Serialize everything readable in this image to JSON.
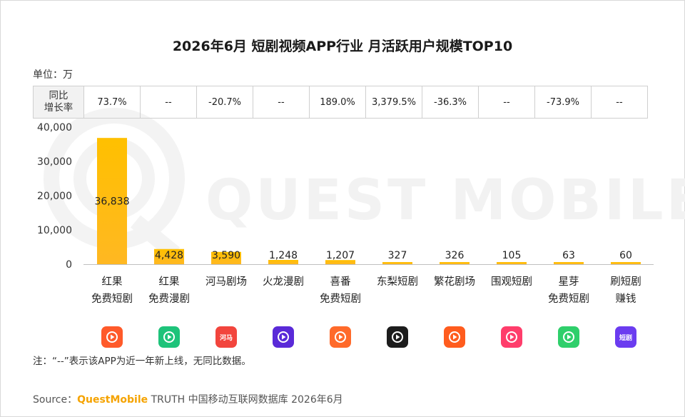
{
  "title": "2026年6月 短剧视频APP行业 月活跃用户规模TOP10",
  "unit_label": "单位：万",
  "watermark": "QUEST MOBILE",
  "yoy_header_line1": "同比",
  "yoy_header_line2": "增长率",
  "note": "注：“--”表示该APP为近一年新上线，无同比数据。",
  "source": {
    "prefix": "Source：",
    "brand": "QuestMobile",
    "suffix": " TRUTH 中国移动互联网数据库 2026年6月"
  },
  "colors": {
    "bar_top": "#ffc000",
    "bar_bottom": "#ffb822",
    "watermark": "#f2f2f2"
  },
  "apps": [
    {
      "label_lines": [
        "红果",
        "免费短剧"
      ],
      "yoy": "73.7%",
      "icon": "red-orange-play-icon",
      "icon_color": "#ff5a2a"
    },
    {
      "label_lines": [
        "红果",
        "免费漫剧"
      ],
      "yoy": "--",
      "icon": "green-play-icon",
      "icon_color": "#1ec37a"
    },
    {
      "label_lines": [
        "河马剧场"
      ],
      "yoy": "-20.7%",
      "icon": "hema-red-icon",
      "icon_color": "#f2453d",
      "icon_text": "河马"
    },
    {
      "label_lines": [
        "火龙漫剧"
      ],
      "yoy": "--",
      "icon": "huolong-purple-icon",
      "icon_color": "#5a2ad8"
    },
    {
      "label_lines": [
        "喜番",
        "免费短剧"
      ],
      "yoy": "189.0%",
      "icon": "xifan-orange-icon",
      "icon_color": "#ff6a2a"
    },
    {
      "label_lines": [
        "东梨短剧"
      ],
      "yoy": "3,379.5%",
      "icon": "dongli-black-icon",
      "icon_color": "#1c1c1c"
    },
    {
      "label_lines": [
        "繁花剧场"
      ],
      "yoy": "-36.3%",
      "icon": "fanhua-flower-icon",
      "icon_color": "#ff5c1e"
    },
    {
      "label_lines": [
        "围观短剧"
      ],
      "yoy": "--",
      "icon": "weiguan-play-icon",
      "icon_color": "#ff3d6b"
    },
    {
      "label_lines": [
        "星芽",
        "免费短剧"
      ],
      "yoy": "-73.9%",
      "icon": "xingya-green-icon",
      "icon_color": "#2fcf6b"
    },
    {
      "label_lines": [
        "刷短剧",
        "赚钱"
      ],
      "yoy": "--",
      "icon": "shuaduanju-purple-icon",
      "icon_color": "#6b3cf0",
      "icon_text": "短剧"
    }
  ],
  "chart_data": {
    "type": "bar",
    "categories": [
      "红果免费短剧",
      "红果免费漫剧",
      "河马剧场",
      "火龙漫剧",
      "喜番免费短剧",
      "东梨短剧",
      "繁花剧场",
      "围观短剧",
      "星芽免费短剧",
      "刷短剧赚钱"
    ],
    "values": [
      36838,
      4428,
      3590,
      1248,
      1207,
      327,
      326,
      105,
      63,
      60
    ],
    "value_labels": [
      "36,838",
      "4,428",
      "3,590",
      "1,248",
      "1,207",
      "327",
      "326",
      "105",
      "63",
      "60"
    ],
    "yticks": [
      "40,000",
      "30,000",
      "20,000",
      "10,000",
      "0"
    ],
    "ytick_values": [
      40000,
      30000,
      20000,
      10000,
      0
    ],
    "ylim": [
      0,
      40000
    ],
    "title": "2026年6月 短剧视频APP行业 月活跃用户规模TOP10",
    "ylabel": "单位：万",
    "grid": false,
    "legend": "none"
  }
}
